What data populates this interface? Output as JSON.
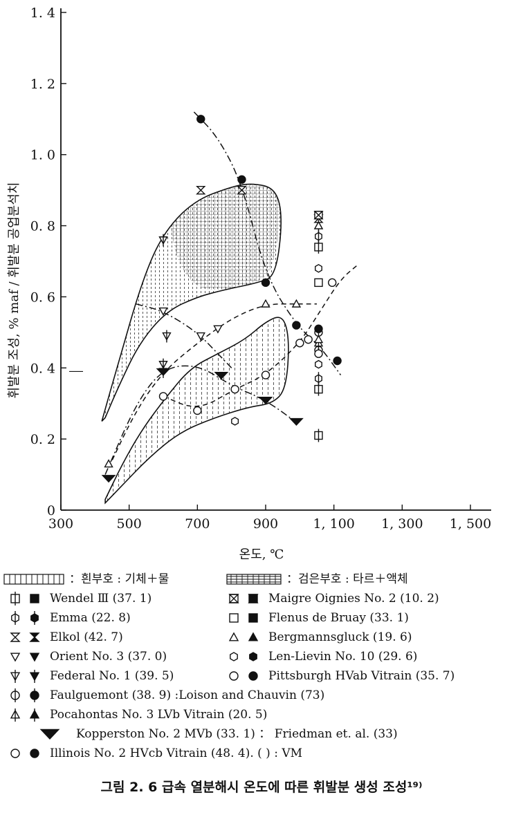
{
  "chart_data": {
    "type": "scatter",
    "xlabel": "온도, ℃",
    "ylabel": "휘발분 조성, % maf / 휘발분 공업분석치",
    "x_ticks": [
      "300",
      "500",
      "700",
      "900",
      "1, 100",
      "1, 300",
      "1, 500"
    ],
    "y_ticks": [
      "0",
      "0. 2",
      "0. 4",
      "0. 6",
      "0. 8",
      "1. 0",
      "1. 2",
      "1. 4"
    ],
    "xlim": [
      300,
      1600
    ],
    "ylim": [
      0,
      1.45
    ],
    "series": [
      {
        "name": "Wendel Ⅲ (37. 1)",
        "marker": "square-tick",
        "points": [
          [
            1055,
            0.74
          ],
          [
            1055,
            0.34
          ],
          [
            1055,
            0.21
          ]
        ]
      },
      {
        "name": "Emma (22. 8)",
        "marker": "hexagon-tick",
        "points": [
          [
            1055,
            0.77
          ],
          [
            1055,
            0.37
          ]
        ]
      },
      {
        "name": "Elkol (42. 7)",
        "marker": "hourglass",
        "points": [
          [
            710,
            0.9
          ],
          [
            830,
            0.9
          ],
          [
            1055,
            0.82
          ]
        ]
      },
      {
        "name": "Orient No. 3 (37. 0)",
        "marker": "triangle-down",
        "points": [
          [
            760,
            0.51
          ],
          [
            710,
            0.49
          ],
          [
            600,
            0.56
          ]
        ]
      },
      {
        "name": "Federal No. 1 (39. 5)",
        "marker": "triangle-down-tick",
        "points": [
          [
            600,
            0.41
          ],
          [
            600,
            0.39
          ],
          [
            610,
            0.49
          ],
          [
            600,
            0.76
          ]
        ]
      },
      {
        "name": "Faulguemont (38. 9)",
        "marker": "circle-tick",
        "points": [
          [
            1055,
            0.45
          ],
          [
            1055,
            0.5
          ]
        ]
      },
      {
        "name": "Pocahontas No. 3 LVb Vitrain (20. 5)",
        "marker": "triangle-tick",
        "points": [
          [
            1055,
            0.47
          ],
          [
            1055,
            0.8
          ]
        ]
      },
      {
        "name": "Kopperston No. 2 MVb (33. 1)",
        "marker": "kopperston",
        "points": [
          [
            440,
            0.09
          ],
          [
            600,
            0.39
          ],
          [
            770,
            0.38
          ],
          [
            900,
            0.31
          ],
          [
            990,
            0.25
          ]
        ]
      },
      {
        "name": "Illinois No. 2 HVcb Vitrain (48. 4)",
        "marker": "circle",
        "points": [
          [
            600,
            0.32
          ],
          [
            700,
            0.28
          ],
          [
            810,
            0.34
          ],
          [
            900,
            0.38
          ],
          [
            1000,
            0.47
          ],
          [
            1025,
            0.48
          ],
          [
            1055,
            0.44
          ],
          [
            1095,
            0.64
          ]
        ]
      },
      {
        "name": "Maigre Oignies No. 2 (10. 2)",
        "marker": "hourglass-box",
        "points": [
          [
            1055,
            0.83
          ]
        ]
      },
      {
        "name": "Flenus de Bruay (33. 1)",
        "marker": "square",
        "points": [
          [
            1055,
            0.64
          ]
        ]
      },
      {
        "name": "Bergmannsgluck (19. 6)",
        "marker": "triangle",
        "points": [
          [
            440,
            0.13
          ],
          [
            900,
            0.58
          ],
          [
            990,
            0.58
          ],
          [
            1055,
            0.48
          ],
          [
            1055,
            0.8
          ]
        ]
      },
      {
        "name": "Len-Lievin No. 10 (29. 6)",
        "marker": "hexagon",
        "points": [
          [
            810,
            0.25
          ],
          [
            1055,
            0.68
          ],
          [
            1055,
            0.41
          ]
        ]
      },
      {
        "name": "Pittsburgh HVab Vitrain (35. 7)",
        "marker": "filled-circle",
        "points": [
          [
            710,
            1.1
          ],
          [
            830,
            0.93
          ],
          [
            900,
            0.64
          ],
          [
            990,
            0.52
          ],
          [
            1055,
            0.51
          ],
          [
            1110,
            0.42
          ]
        ]
      }
    ]
  },
  "legend": {
    "fill_note_open": "：흰부호 : 기체＋물",
    "fill_note_filled": "：검은부호 : 타르＋액체",
    "entries": [
      {
        "label": "Wendel Ⅲ (37. 1)"
      },
      {
        "label": "Maigre Oignies No. 2 (10. 2)"
      },
      {
        "label": "Emma (22. 8)"
      },
      {
        "label": "Flenus de Bruay (33. 1)"
      },
      {
        "label": "Elkol (42. 7)"
      },
      {
        "label": "Bergmannsgluck (19. 6)"
      },
      {
        "label": "Orient No. 3 (37. 0)"
      },
      {
        "label": "Len-Lievin No. 10 (29. 6)"
      },
      {
        "label": "Federal No. 1 (39. 5)"
      },
      {
        "label": "Pittsburgh HVab Vitrain (35. 7)"
      },
      {
        "label": "Faulguemont (38. 9) :Loison and Chauvin (73)"
      },
      {
        "label": "Pocahontas No. 3 LVb Vitrain (20. 5)"
      },
      {
        "label": "Kopperston No. 2 MVb (33. 1) ： Friedman et. al. (33)"
      },
      {
        "label": "Illinois No. 2 HVcb Vitrain (48. 4). (  ) : VM"
      }
    ]
  },
  "caption": "그림 2. 6 급속 열분해시 온도에 따른 휘발분 생성 조성¹⁹⁾"
}
